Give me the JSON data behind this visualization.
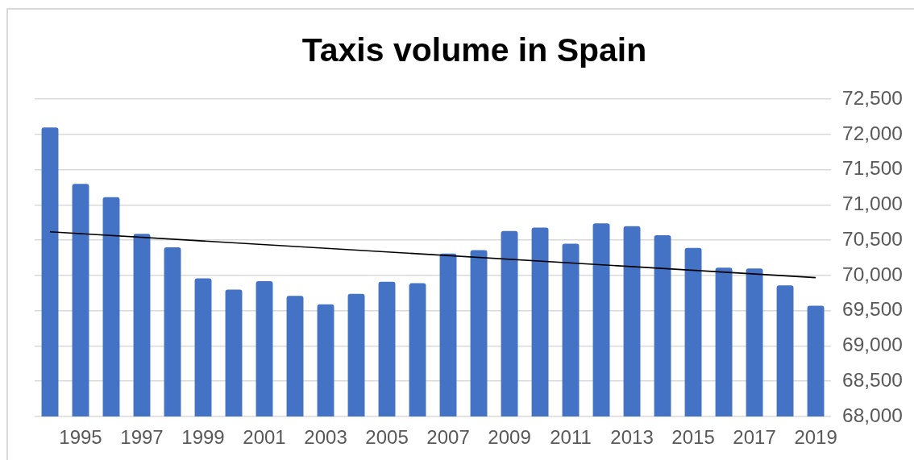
{
  "chart_data": {
    "type": "bar",
    "title": "Taxis volume in Spain",
    "x": [
      1994,
      1995,
      1996,
      1997,
      1998,
      1999,
      2000,
      2001,
      2002,
      2003,
      2004,
      2005,
      2006,
      2007,
      2008,
      2009,
      2010,
      2011,
      2012,
      2013,
      2014,
      2015,
      2016,
      2017,
      2018,
      2019
    ],
    "xlim": [
      1993.5,
      2019.5
    ],
    "xticks": [
      1995,
      1997,
      1999,
      2001,
      2003,
      2005,
      2007,
      2009,
      2011,
      2013,
      2015,
      2017,
      2019
    ],
    "ylim": [
      68000,
      72500
    ],
    "yticks": [
      {
        "value": 68000,
        "label": "68,000"
      },
      {
        "value": 68500,
        "label": "68,500"
      },
      {
        "value": 69000,
        "label": "69,000"
      },
      {
        "value": 69500,
        "label": "69,500"
      },
      {
        "value": 70000,
        "label": "70,000"
      },
      {
        "value": 70500,
        "label": "70,500"
      },
      {
        "value": 71000,
        "label": "71,000"
      },
      {
        "value": 71500,
        "label": "71,500"
      },
      {
        "value": 72000,
        "label": "72,000"
      },
      {
        "value": 72500,
        "label": "72,500"
      }
    ],
    "grid": "y",
    "legend": false,
    "marker": "none",
    "series": [
      {
        "color": "#4472c4",
        "values": [
          72100,
          71300,
          71110,
          70590,
          70400,
          69960,
          69800,
          69920,
          69710,
          69590,
          69740,
          69910,
          69890,
          70310,
          70360,
          70630,
          70680,
          70450,
          70740,
          70700,
          70570,
          70390,
          70110,
          70100,
          69860,
          69570
        ]
      },
      {
        "type": "line",
        "color": "#000000",
        "x": [
          1994,
          2019
        ],
        "values": [
          70620,
          69970
        ]
      }
    ]
  }
}
